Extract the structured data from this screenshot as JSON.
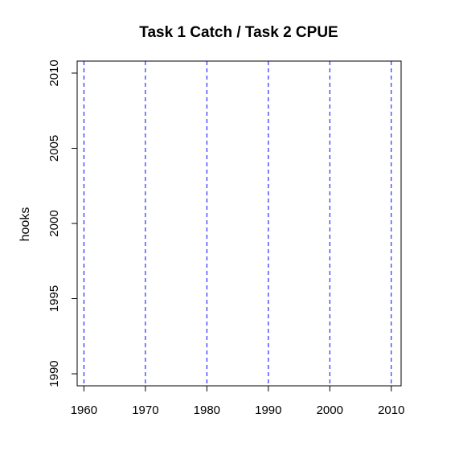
{
  "chart_data": {
    "type": "line",
    "title": "Task 1 Catch / Task 2 CPUE",
    "xlabel": "",
    "ylabel": "hooks",
    "xlim": [
      1958.9,
      2011.6
    ],
    "ylim": [
      1989.2,
      2010.8
    ],
    "xticks": [
      1960,
      1970,
      1980,
      1990,
      2000,
      2010
    ],
    "yticks": [
      1990,
      1995,
      2000,
      2005,
      2010
    ],
    "vlines": [
      1960,
      1970,
      1980,
      1990,
      2000,
      2010
    ],
    "vline_color": "#0000ff",
    "vline_style": "dashed",
    "series": [],
    "grid": false
  }
}
